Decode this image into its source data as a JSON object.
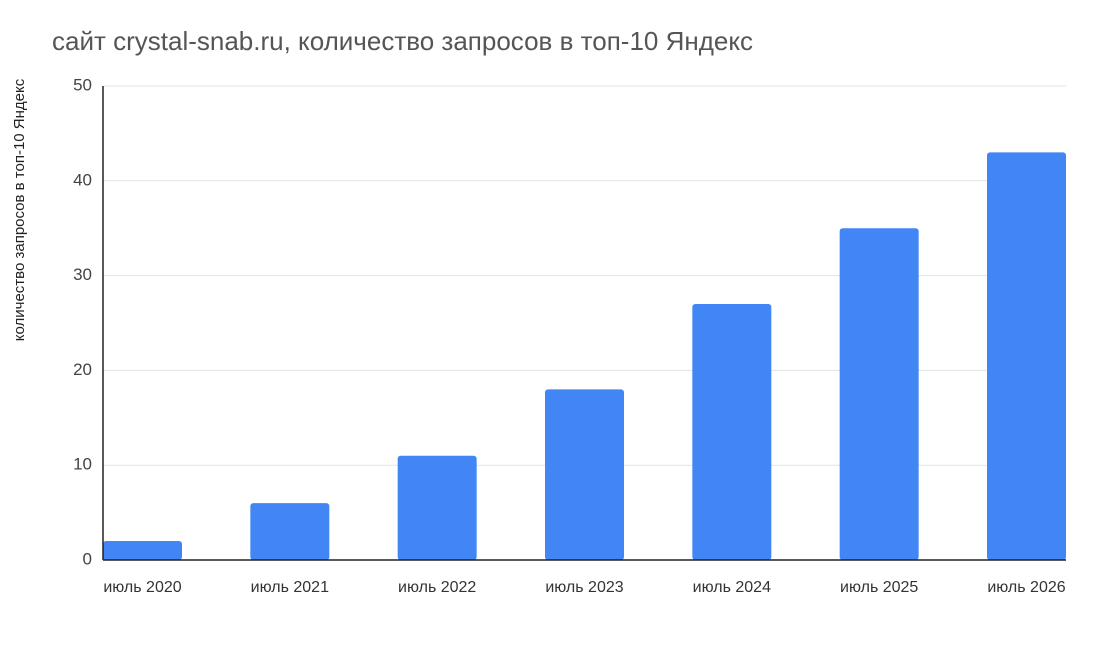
{
  "chart_data": {
    "type": "bar",
    "title": "сайт crystal-snab.ru, количество запросов в топ-10 Яндекс",
    "y_label": "количество запросов в топ-10 Яндекс",
    "categories": [
      "июль 2020",
      "июль 2021",
      "июль 2022",
      "июль 2023",
      "июль 2024",
      "июль 2025",
      "июль 2026"
    ],
    "values": [
      2,
      6,
      11,
      18,
      27,
      35,
      43
    ],
    "color": "#4285f4",
    "ylim": [
      0,
      50
    ],
    "yticks": [
      0,
      10,
      20,
      30,
      40,
      50
    ],
    "grid": true
  }
}
